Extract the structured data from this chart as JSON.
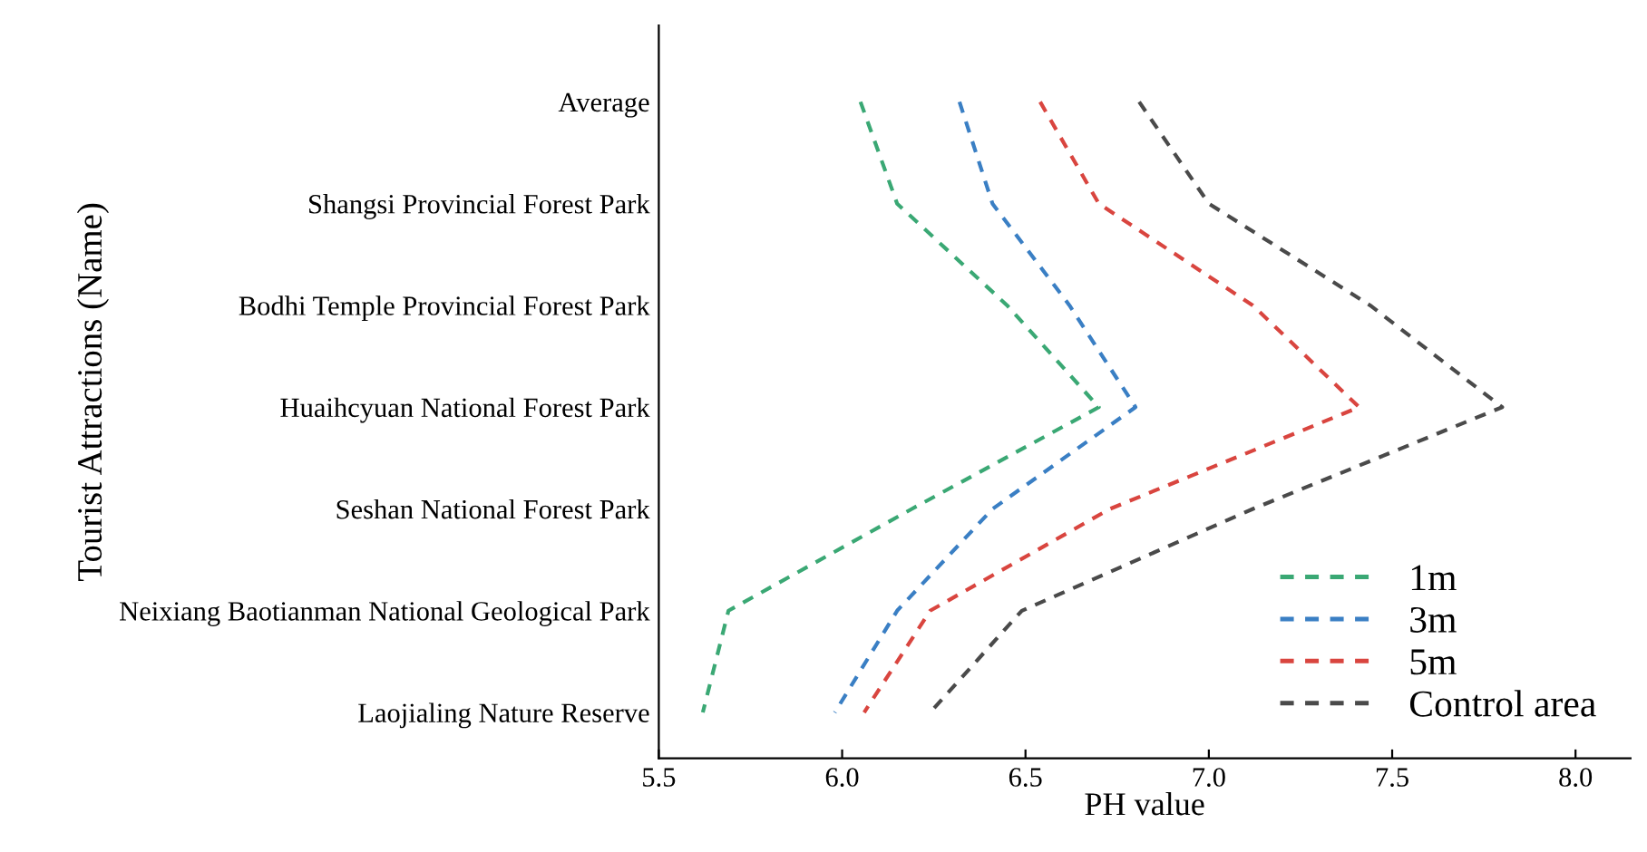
{
  "chart_data": {
    "type": "line",
    "orientation": "horizontal",
    "xlabel": "PH value",
    "ylabel": "Tourist Attractions (Name)",
    "categories": [
      "Average",
      "Shangsi Provincial Forest Park",
      "Bodhi Temple Provincial Forest Park",
      "Huaihcyuan National Forest Park",
      "Seshan National Forest Park",
      "Neixiang Baotianman National Geological Park",
      "Laojialing Nature Reserve"
    ],
    "series": [
      {
        "name": "1m",
        "color": "#3aa874",
        "values": [
          6.05,
          6.15,
          6.45,
          6.7,
          6.19,
          5.69,
          5.62
        ]
      },
      {
        "name": "3m",
        "color": "#3a7fc4",
        "values": [
          6.32,
          6.41,
          6.62,
          6.8,
          6.41,
          6.15,
          5.98
        ]
      },
      {
        "name": "5m",
        "color": "#d9453f",
        "values": [
          6.54,
          6.7,
          7.12,
          7.41,
          6.73,
          6.24,
          6.06
        ]
      },
      {
        "name": "Control area",
        "color": "#4a4a4a",
        "values": [
          6.81,
          7.0,
          7.44,
          7.8,
          7.12,
          6.49,
          6.24
        ]
      }
    ],
    "xlim": [
      5.5,
      8.15
    ],
    "xticks": [
      {
        "value": 5.5,
        "label": "5.5"
      },
      {
        "value": 6.0,
        "label": "6.0"
      },
      {
        "value": 6.5,
        "label": "6.5"
      },
      {
        "value": 7.0,
        "label": "7.0"
      },
      {
        "value": 7.5,
        "label": "7.5"
      },
      {
        "value": 8.0,
        "label": "8.0"
      }
    ],
    "legend": "bottom right",
    "line_style": "dashed",
    "marker": "none"
  }
}
